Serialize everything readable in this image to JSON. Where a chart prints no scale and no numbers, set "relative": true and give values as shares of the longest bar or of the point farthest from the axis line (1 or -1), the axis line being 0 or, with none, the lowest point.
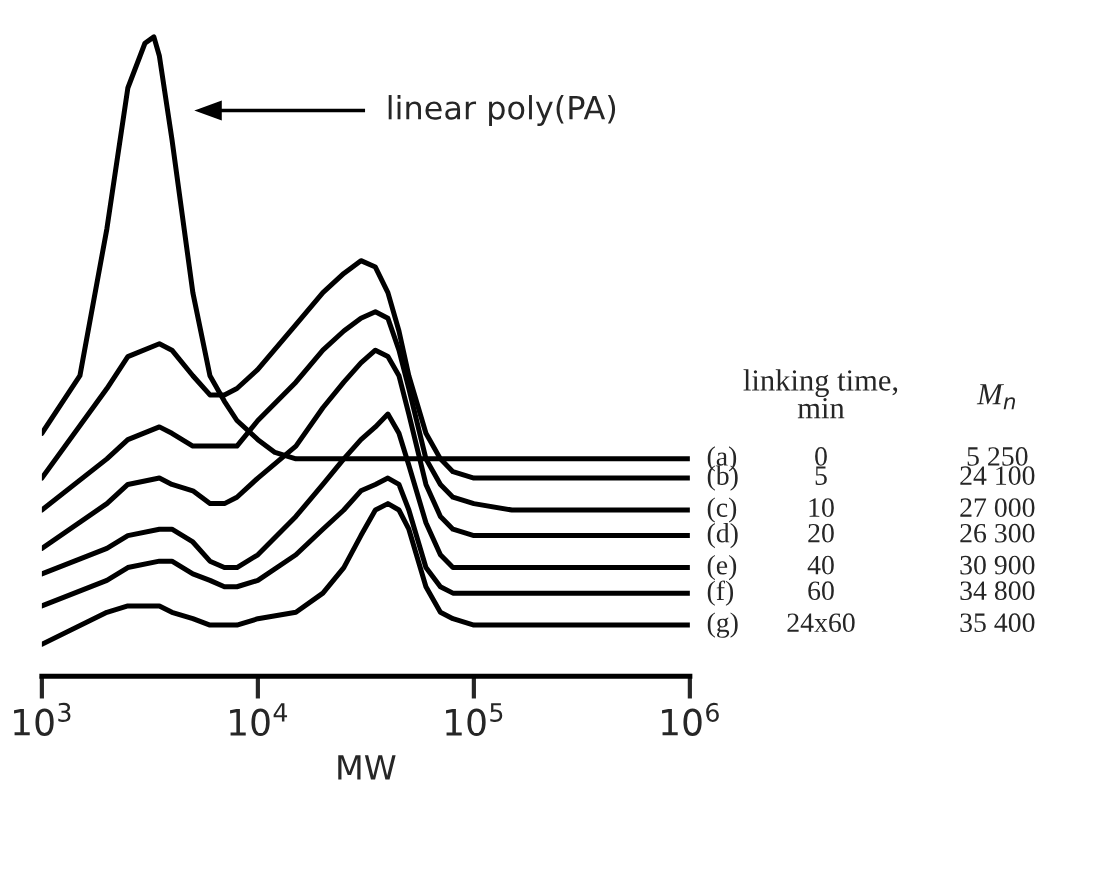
{
  "chart_data": {
    "type": "line",
    "relative": true,
    "xlabel": "MW",
    "log": "x",
    "xlim": [
      1000,
      1000000
    ],
    "xticks": [
      {
        "value": 1000,
        "label": "10$^{3}$"
      },
      {
        "value": 10000,
        "label": "10$^{4}$"
      },
      {
        "value": 100000,
        "label": "10$^{5}$"
      },
      {
        "value": 1000000,
        "label": "10$^{6}$"
      }
    ],
    "grid": false,
    "legend": false,
    "marker": "none",
    "line_style": "solid",
    "series": [
      {
        "name": "(a)",
        "color": "#000000",
        "x": [
          1000,
          1500,
          2000,
          2500,
          3000,
          3300,
          3500,
          4000,
          5000,
          6000,
          7000,
          8000,
          10000,
          12000,
          15000,
          20000,
          1000000
        ],
        "values": [
          0.38,
          0.47,
          0.7,
          0.92,
          0.99,
          1.0,
          0.97,
          0.84,
          0.6,
          0.47,
          0.43,
          0.4,
          0.37,
          0.35,
          0.34,
          0.34,
          0.34
        ]
      },
      {
        "name": "(b)",
        "color": "#000000",
        "x": [
          1000,
          2000,
          2500,
          3500,
          4000,
          5000,
          6000,
          7000,
          8000,
          10000,
          15000,
          20000,
          25000,
          30000,
          35000,
          40000,
          45000,
          50000,
          60000,
          70000,
          80000,
          100000,
          150000,
          200000,
          1000000
        ],
        "values": [
          0.31,
          0.45,
          0.5,
          0.52,
          0.51,
          0.47,
          0.44,
          0.44,
          0.45,
          0.48,
          0.55,
          0.6,
          0.63,
          0.65,
          0.64,
          0.6,
          0.54,
          0.47,
          0.38,
          0.34,
          0.32,
          0.31,
          0.31,
          0.31,
          0.31
        ]
      },
      {
        "name": "(c)",
        "color": "#000000",
        "x": [
          1000,
          2000,
          2500,
          3500,
          4000,
          5000,
          6000,
          7000,
          8000,
          10000,
          15000,
          20000,
          25000,
          30000,
          35000,
          40000,
          45000,
          50000,
          60000,
          70000,
          80000,
          100000,
          150000,
          200000,
          1000000
        ],
        "values": [
          0.26,
          0.34,
          0.37,
          0.39,
          0.38,
          0.36,
          0.36,
          0.36,
          0.36,
          0.4,
          0.46,
          0.51,
          0.54,
          0.56,
          0.57,
          0.56,
          0.51,
          0.45,
          0.34,
          0.3,
          0.28,
          0.27,
          0.26,
          0.26,
          0.26
        ]
      },
      {
        "name": "(d)",
        "color": "#000000",
        "x": [
          1000,
          2000,
          2500,
          3500,
          4000,
          5000,
          6000,
          7000,
          8000,
          10000,
          15000,
          20000,
          25000,
          30000,
          35000,
          40000,
          45000,
          50000,
          60000,
          70000,
          80000,
          100000,
          150000,
          200000,
          1000000
        ],
        "values": [
          0.2,
          0.27,
          0.3,
          0.31,
          0.3,
          0.29,
          0.27,
          0.27,
          0.28,
          0.31,
          0.36,
          0.42,
          0.46,
          0.49,
          0.51,
          0.5,
          0.47,
          0.41,
          0.3,
          0.25,
          0.23,
          0.22,
          0.22,
          0.22,
          0.22
        ]
      },
      {
        "name": "(e)",
        "color": "#000000",
        "x": [
          1000,
          2000,
          2500,
          3500,
          4000,
          5000,
          6000,
          7000,
          8000,
          10000,
          15000,
          20000,
          25000,
          30000,
          35000,
          40000,
          45000,
          50000,
          60000,
          70000,
          80000,
          100000,
          150000,
          200000,
          1000000
        ],
        "values": [
          0.16,
          0.2,
          0.22,
          0.23,
          0.23,
          0.21,
          0.18,
          0.17,
          0.17,
          0.19,
          0.25,
          0.3,
          0.34,
          0.37,
          0.39,
          0.41,
          0.38,
          0.33,
          0.24,
          0.19,
          0.17,
          0.17,
          0.17,
          0.17,
          0.17
        ]
      },
      {
        "name": "(f)",
        "color": "#000000",
        "x": [
          1000,
          2000,
          2500,
          3500,
          4000,
          5000,
          6000,
          7000,
          8000,
          10000,
          15000,
          20000,
          25000,
          30000,
          35000,
          40000,
          45000,
          50000,
          60000,
          70000,
          80000,
          100000,
          150000,
          200000,
          1000000
        ],
        "values": [
          0.11,
          0.15,
          0.17,
          0.18,
          0.18,
          0.16,
          0.15,
          0.14,
          0.14,
          0.15,
          0.19,
          0.23,
          0.26,
          0.29,
          0.3,
          0.31,
          0.3,
          0.26,
          0.17,
          0.14,
          0.13,
          0.13,
          0.13,
          0.13,
          0.13
        ]
      },
      {
        "name": "(g)",
        "color": "#000000",
        "x": [
          1000,
          2000,
          2500,
          3500,
          4000,
          5000,
          6000,
          7000,
          8000,
          10000,
          15000,
          20000,
          25000,
          30000,
          35000,
          40000,
          45000,
          50000,
          60000,
          70000,
          80000,
          100000,
          150000,
          200000,
          1000000
        ],
        "values": [
          0.05,
          0.1,
          0.11,
          0.11,
          0.1,
          0.09,
          0.08,
          0.08,
          0.08,
          0.09,
          0.1,
          0.13,
          0.17,
          0.22,
          0.26,
          0.27,
          0.26,
          0.23,
          0.14,
          0.1,
          0.09,
          0.08,
          0.08,
          0.08,
          0.08
        ]
      }
    ],
    "annotations": [
      "linear poly(PA)",
      "linking time,\nmin",
      "M$_{n}$",
      "0",
      "5 250",
      "5",
      "24 100",
      "10",
      "27 000",
      "20",
      "26 300",
      "40",
      "30 900",
      "60",
      "34 800",
      "24x60",
      "35 400"
    ]
  }
}
